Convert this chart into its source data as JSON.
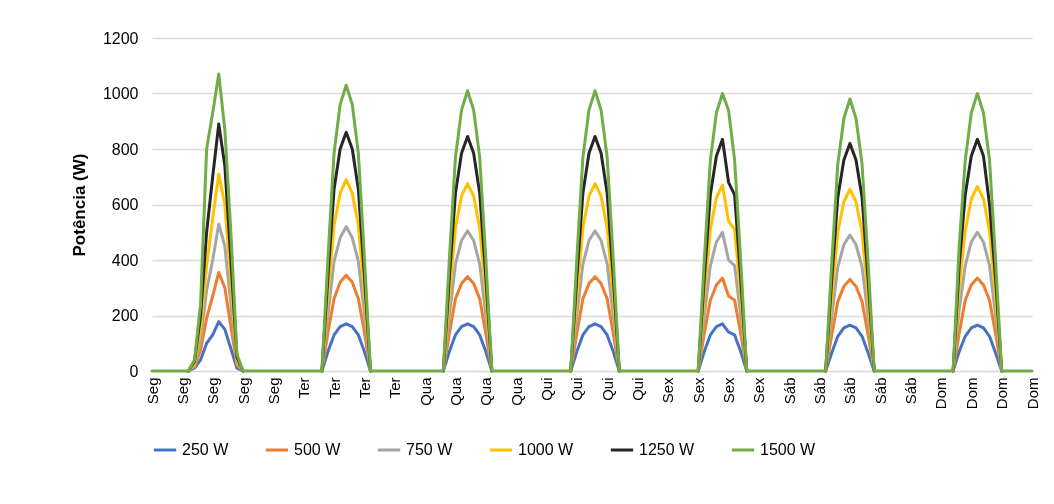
{
  "chart_data": {
    "type": "line",
    "ylabel": "Potência (W)",
    "categories": [
      "Seg",
      null,
      null,
      null,
      null,
      "Seg",
      null,
      null,
      null,
      null,
      "Seg",
      null,
      null,
      null,
      null,
      "Seg",
      null,
      null,
      null,
      null,
      "Seg",
      null,
      null,
      null,
      null,
      "Ter",
      null,
      null,
      null,
      null,
      "Ter",
      null,
      null,
      null,
      null,
      "Ter",
      null,
      null,
      null,
      null,
      "Ter",
      null,
      null,
      null,
      null,
      "Qua",
      null,
      null,
      null,
      null,
      "Qua",
      null,
      null,
      null,
      null,
      "Qua",
      null,
      null,
      null,
      null,
      "Qua",
      null,
      null,
      null,
      null,
      "Qui",
      null,
      null,
      null,
      null,
      "Qui",
      null,
      null,
      null,
      null,
      "Qui",
      null,
      null,
      null,
      null,
      "Qui",
      null,
      null,
      null,
      null,
      "Sex",
      null,
      null,
      null,
      null,
      "Sex",
      null,
      null,
      null,
      null,
      "Sex",
      null,
      null,
      null,
      null,
      "Sex",
      null,
      null,
      null,
      null,
      "Sáb",
      null,
      null,
      null,
      null,
      "Sáb",
      null,
      null,
      null,
      null,
      "Sáb",
      null,
      null,
      null,
      null,
      "Sáb",
      null,
      null,
      null,
      null,
      "Sáb",
      null,
      null,
      null,
      null,
      "Dom",
      null,
      null,
      null,
      null,
      "Dom",
      null,
      null,
      null,
      null,
      "Dom",
      null,
      null,
      null,
      null,
      "Dom"
    ],
    "series": [
      {
        "name": "250 W",
        "color": "#4472c4",
        "values": [
          null,
          null,
          null,
          null,
          null,
          null,
          0,
          10,
          40,
          100,
          130,
          178,
          150,
          80,
          10,
          0,
          null,
          null,
          null,
          null,
          null,
          null,
          null,
          null,
          null,
          null,
          null,
          null,
          0,
          70,
          130,
          160,
          170,
          160,
          130,
          70,
          0,
          null,
          null,
          null,
          null,
          null,
          null,
          null,
          null,
          null,
          null,
          null,
          0,
          70,
          130,
          160,
          170,
          160,
          130,
          70,
          0,
          null,
          null,
          null,
          null,
          null,
          null,
          null,
          null,
          null,
          null,
          null,
          null,
          0,
          70,
          130,
          160,
          170,
          160,
          130,
          70,
          0,
          null,
          null,
          null,
          null,
          null,
          null,
          null,
          null,
          null,
          null,
          null,
          null,
          0,
          70,
          130,
          160,
          170,
          140,
          130,
          70,
          0,
          null,
          null,
          null,
          null,
          null,
          null,
          null,
          null,
          null,
          null,
          null,
          null,
          0,
          65,
          125,
          155,
          165,
          155,
          125,
          65,
          0,
          null,
          null,
          null,
          null,
          null,
          null,
          null,
          null,
          null,
          null,
          null,
          null,
          0,
          70,
          125,
          155,
          165,
          155,
          125,
          65,
          0,
          null,
          null,
          null,
          null,
          null
        ]
      },
      {
        "name": "500 W",
        "color": "#ed7d31",
        "values": [
          null,
          null,
          null,
          null,
          null,
          null,
          0,
          15,
          75,
          190,
          270,
          355,
          300,
          160,
          20,
          0,
          null,
          null,
          null,
          null,
          null,
          null,
          null,
          null,
          null,
          null,
          null,
          null,
          0,
          140,
          260,
          320,
          345,
          320,
          260,
          140,
          0,
          null,
          null,
          null,
          null,
          null,
          null,
          null,
          null,
          null,
          null,
          null,
          0,
          135,
          260,
          315,
          340,
          315,
          260,
          135,
          0,
          null,
          null,
          null,
          null,
          null,
          null,
          null,
          null,
          null,
          null,
          null,
          null,
          0,
          135,
          260,
          315,
          340,
          315,
          260,
          135,
          0,
          null,
          null,
          null,
          null,
          null,
          null,
          null,
          null,
          null,
          null,
          null,
          null,
          0,
          135,
          255,
          310,
          335,
          270,
          255,
          135,
          0,
          null,
          null,
          null,
          null,
          null,
          null,
          null,
          null,
          null,
          null,
          null,
          null,
          0,
          130,
          250,
          305,
          330,
          305,
          250,
          130,
          0,
          null,
          null,
          null,
          null,
          null,
          null,
          null,
          null,
          null,
          null,
          null,
          null,
          0,
          135,
          255,
          310,
          335,
          310,
          255,
          135,
          0,
          null,
          null,
          null,
          null,
          null
        ]
      },
      {
        "name": "750 W",
        "color": "#a5a5a5",
        "values": [
          null,
          null,
          null,
          null,
          null,
          null,
          0,
          20,
          110,
          290,
          400,
          530,
          450,
          240,
          30,
          0,
          null,
          null,
          null,
          null,
          null,
          null,
          null,
          null,
          null,
          null,
          null,
          null,
          0,
          205,
          395,
          480,
          520,
          480,
          395,
          205,
          0,
          null,
          null,
          null,
          null,
          null,
          null,
          null,
          null,
          null,
          null,
          null,
          0,
          200,
          385,
          470,
          505,
          470,
          385,
          200,
          0,
          null,
          null,
          null,
          null,
          null,
          null,
          null,
          null,
          null,
          null,
          null,
          null,
          0,
          200,
          385,
          470,
          505,
          470,
          385,
          200,
          0,
          null,
          null,
          null,
          null,
          null,
          null,
          null,
          null,
          null,
          null,
          null,
          null,
          0,
          200,
          380,
          465,
          500,
          400,
          380,
          200,
          0,
          null,
          null,
          null,
          null,
          null,
          null,
          null,
          null,
          null,
          null,
          null,
          null,
          0,
          195,
          375,
          455,
          490,
          455,
          375,
          195,
          0,
          null,
          null,
          null,
          null,
          null,
          null,
          null,
          null,
          null,
          null,
          null,
          null,
          0,
          220,
          380,
          465,
          500,
          465,
          380,
          200,
          0,
          null,
          null,
          null,
          null,
          null
        ]
      },
      {
        "name": "1000 W",
        "color": "#ffc000",
        "values": [
          null,
          null,
          null,
          null,
          null,
          null,
          0,
          25,
          150,
          380,
          550,
          710,
          600,
          320,
          40,
          0,
          null,
          null,
          null,
          null,
          null,
          null,
          null,
          null,
          null,
          null,
          null,
          null,
          0,
          275,
          525,
          640,
          690,
          640,
          525,
          275,
          0,
          null,
          null,
          null,
          null,
          null,
          null,
          null,
          null,
          null,
          null,
          null,
          0,
          270,
          515,
          630,
          675,
          630,
          515,
          270,
          0,
          null,
          null,
          null,
          null,
          null,
          null,
          null,
          null,
          null,
          null,
          null,
          null,
          0,
          270,
          515,
          630,
          675,
          630,
          515,
          270,
          0,
          null,
          null,
          null,
          null,
          null,
          null,
          null,
          null,
          null,
          null,
          null,
          null,
          0,
          270,
          510,
          625,
          670,
          540,
          510,
          270,
          0,
          null,
          null,
          null,
          null,
          null,
          null,
          null,
          null,
          null,
          null,
          null,
          null,
          0,
          260,
          500,
          610,
          655,
          610,
          500,
          260,
          0,
          null,
          null,
          null,
          null,
          null,
          null,
          null,
          null,
          null,
          null,
          null,
          null,
          0,
          300,
          505,
          620,
          665,
          620,
          505,
          265,
          0,
          null,
          null,
          null,
          null,
          null
        ]
      },
      {
        "name": "1250 W",
        "color": "#262626",
        "values": [
          null,
          null,
          null,
          null,
          null,
          null,
          0,
          35,
          200,
          500,
          700,
          890,
          740,
          400,
          50,
          0,
          null,
          null,
          null,
          null,
          null,
          null,
          null,
          null,
          null,
          null,
          null,
          null,
          0,
          345,
          655,
          800,
          860,
          800,
          655,
          345,
          0,
          null,
          null,
          null,
          null,
          null,
          null,
          null,
          null,
          null,
          null,
          null,
          0,
          340,
          640,
          785,
          845,
          785,
          640,
          340,
          0,
          null,
          null,
          null,
          null,
          null,
          null,
          null,
          null,
          null,
          null,
          null,
          null,
          0,
          340,
          640,
          785,
          845,
          785,
          640,
          340,
          0,
          null,
          null,
          null,
          null,
          null,
          null,
          null,
          null,
          null,
          null,
          null,
          null,
          0,
          335,
          635,
          775,
          835,
          680,
          635,
          335,
          0,
          null,
          null,
          null,
          null,
          null,
          null,
          null,
          null,
          null,
          null,
          null,
          null,
          0,
          330,
          625,
          760,
          820,
          760,
          625,
          330,
          0,
          null,
          null,
          null,
          null,
          null,
          null,
          null,
          null,
          null,
          null,
          null,
          null,
          0,
          380,
          635,
          775,
          835,
          775,
          600,
          335,
          0,
          null,
          null,
          null,
          null,
          null
        ]
      },
      {
        "name": "1500 W",
        "color": "#70ad47",
        "values": [
          0,
          0,
          0,
          0,
          0,
          0,
          0,
          40,
          240,
          800,
          930,
          1070,
          870,
          500,
          60,
          0,
          0,
          0,
          0,
          0,
          0,
          0,
          0,
          0,
          0,
          0,
          0,
          0,
          0,
          410,
          785,
          960,
          1030,
          960,
          785,
          410,
          0,
          0,
          0,
          0,
          0,
          0,
          0,
          0,
          0,
          0,
          0,
          0,
          0,
          405,
          770,
          940,
          1010,
          940,
          770,
          405,
          0,
          0,
          0,
          0,
          0,
          0,
          0,
          0,
          0,
          0,
          0,
          0,
          0,
          0,
          405,
          770,
          940,
          1010,
          940,
          770,
          405,
          0,
          0,
          0,
          0,
          0,
          0,
          0,
          0,
          0,
          0,
          0,
          0,
          0,
          0,
          400,
          760,
          930,
          1000,
          940,
          760,
          400,
          0,
          0,
          0,
          0,
          0,
          0,
          0,
          0,
          0,
          0,
          0,
          0,
          0,
          0,
          390,
          745,
          910,
          980,
          910,
          745,
          390,
          0,
          0,
          0,
          0,
          0,
          0,
          0,
          0,
          0,
          0,
          0,
          0,
          0,
          0,
          450,
          760,
          930,
          1000,
          930,
          760,
          400,
          0,
          0,
          0,
          0,
          0,
          0
        ]
      }
    ],
    "ylim": [
      0,
      1200
    ],
    "yticks": [
      0,
      200,
      400,
      600,
      800,
      1000,
      1200
    ],
    "grid": "y",
    "legend": "bottom"
  }
}
